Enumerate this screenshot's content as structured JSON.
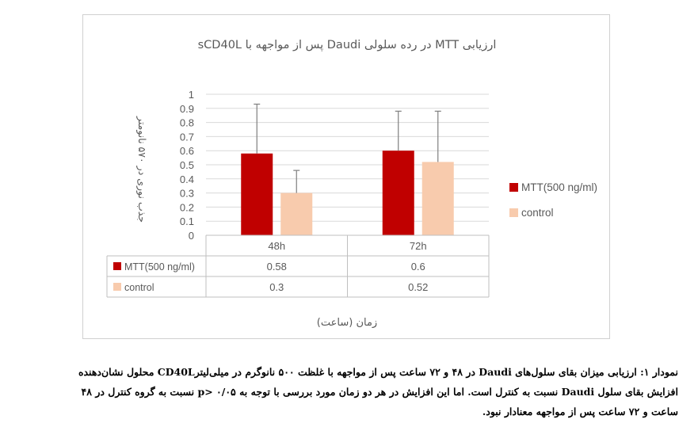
{
  "chart_data": {
    "type": "bar",
    "title": "ارزیابی MTT در رده سلولی Daudi پس از مواجهه با sCD40L",
    "ylabel": "جذب نوری در ۵۷۰ نانومتر",
    "xlabel": "زمان (ساعت)",
    "categories": [
      "48h",
      "72h"
    ],
    "ylim": [
      0,
      1
    ],
    "yticks": [
      "0",
      "0.1",
      "0.2",
      "0.3",
      "0.4",
      "0.5",
      "0.6",
      "0.7",
      "0.8",
      "0.9",
      "1"
    ],
    "grid": true,
    "legend_position": "right",
    "data_table": true,
    "series": [
      {
        "name": "MTT(500 ng/ml)",
        "values": [
          0.58,
          0.6
        ],
        "labels": [
          "0.58",
          "0.6"
        ],
        "error_upper": [
          0.93,
          0.88
        ],
        "color": "#c00000"
      },
      {
        "name": "control",
        "values": [
          0.3,
          0.52
        ],
        "labels": [
          "0.3",
          "0.52"
        ],
        "error_upper": [
          0.46,
          0.88
        ],
        "color": "#f8cbad"
      }
    ]
  },
  "caption": {
    "line1": "نمودار ۱: ارزیابی میزان بقای سلول‌های Daudi در ۴۸ و ۷۲ ساعت پس از مواجهه با غلظت ۵۰۰ نانوگرم در میلی‌لیترCD40L محلول نشان‌دهنده",
    "line2": "افزایش بقای سلول Daudi نسبت به کنترل است. اما این افزایش در هر دو زمان مورد بررسی با توجه به p> ۰/۰۵ نسبت به گروه کنترل در ۴۸",
    "line3": "ساعت و ۷۲ ساعت پس از مواجهه معنادار نبود."
  }
}
